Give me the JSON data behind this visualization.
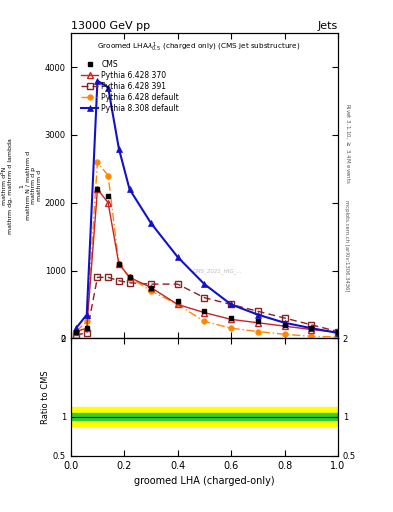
{
  "title_left": "13000 GeV pp",
  "title_right": "Jets",
  "xlabel": "groomed LHA (charged-only)",
  "ylabel_ratio": "Ratio to CMS",
  "plot_subtitle": "Groomed LHA$\\lambda^{1}_{0.5}$ (charged only) (CMS jet substructure)",
  "watermark": "CMS_2021_HIG_...",
  "cms_x": [
    0.02,
    0.06,
    0.1,
    0.14,
    0.18,
    0.22,
    0.3,
    0.4,
    0.5,
    0.6,
    0.7,
    0.8,
    0.9,
    1.0
  ],
  "cms_y": [
    100,
    150,
    2200,
    2100,
    1100,
    900,
    750,
    550,
    400,
    300,
    250,
    200,
    150,
    100
  ],
  "p6_370_x": [
    0.02,
    0.06,
    0.1,
    0.14,
    0.18,
    0.22,
    0.3,
    0.4,
    0.5,
    0.6,
    0.7,
    0.8,
    0.9,
    1.0
  ],
  "p6_370_y": [
    100,
    150,
    2200,
    2000,
    1100,
    900,
    750,
    500,
    380,
    280,
    230,
    180,
    130,
    90
  ],
  "p6_391_x": [
    0.02,
    0.06,
    0.1,
    0.14,
    0.18,
    0.22,
    0.3,
    0.4,
    0.5,
    0.6,
    0.7,
    0.8,
    0.9,
    1.0
  ],
  "p6_391_y": [
    50,
    80,
    900,
    900,
    850,
    820,
    800,
    800,
    600,
    500,
    400,
    300,
    200,
    100
  ],
  "p6_def_x": [
    0.02,
    0.06,
    0.1,
    0.14,
    0.18,
    0.22,
    0.3,
    0.4,
    0.5,
    0.6,
    0.7,
    0.8,
    0.9,
    1.0
  ],
  "p6_def_y": [
    100,
    250,
    2600,
    2400,
    1100,
    900,
    700,
    500,
    250,
    150,
    100,
    60,
    30,
    20
  ],
  "p8_def_x": [
    0.02,
    0.06,
    0.1,
    0.14,
    0.18,
    0.22,
    0.3,
    0.4,
    0.5,
    0.6,
    0.7,
    0.8,
    0.9,
    1.0
  ],
  "p8_def_y": [
    150,
    350,
    3800,
    3700,
    2800,
    2200,
    1700,
    1200,
    800,
    500,
    350,
    230,
    150,
    80
  ],
  "color_p6_370": "#cc2222",
  "color_p6_391": "#882222",
  "color_p6_def": "#ff8800",
  "color_p8_def": "#1111cc",
  "ylim_main": [
    0,
    4500
  ],
  "yticks_main": [
    0,
    1000,
    2000,
    3000,
    4000
  ],
  "ylim_ratio": [
    0.5,
    2.0
  ],
  "xlim": [
    0.0,
    1.0
  ],
  "green_band_lower": 0.95,
  "green_band_upper": 1.05,
  "yellow_band_lower": 0.88,
  "yellow_band_upper": 1.12,
  "bg_color": "#ffffff"
}
